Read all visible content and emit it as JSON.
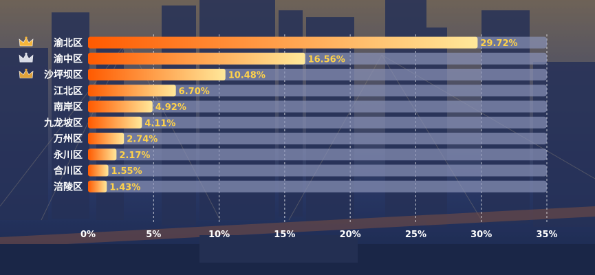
{
  "chart_data": {
    "type": "bar",
    "orientation": "horizontal",
    "categories": [
      "渝北区",
      "渝中区",
      "沙坪坝区",
      "江北区",
      "南岸区",
      "九龙坡区",
      "万州区",
      "永川区",
      "合川区",
      "涪陵区"
    ],
    "values": [
      29.72,
      16.56,
      10.48,
      6.7,
      4.92,
      4.11,
      2.74,
      2.17,
      1.55,
      1.43
    ],
    "value_labels": [
      "29.72%",
      "16.56%",
      "10.48%",
      "6.70%",
      "4.92%",
      "4.11%",
      "2.74%",
      "2.17%",
      "1.55%",
      "1.43%"
    ],
    "x_ticks": [
      0,
      5,
      10,
      15,
      20,
      25,
      30,
      35
    ],
    "x_tick_labels": [
      "0%",
      "5%",
      "10%",
      "15%",
      "20%",
      "25%",
      "30%",
      "35%"
    ],
    "xlim": [
      0,
      35
    ],
    "title": "",
    "xlabel": "",
    "ylabel": "",
    "grid": "vertical-dotted",
    "legend": "none",
    "top_rank_icons": [
      "crown-gold-icon",
      "crown-silver-icon",
      "crown-bronze-icon"
    ],
    "colors": {
      "bar_start": "#ff5a00",
      "bar_end": "#ffe89a",
      "track": "#8a93b8",
      "value_label": "#ffd24a",
      "text": "#ffffff",
      "crown_gold": "#f5b53a",
      "crown_silver": "#d9dce6",
      "crown_bronze": "#e0a23a"
    }
  }
}
